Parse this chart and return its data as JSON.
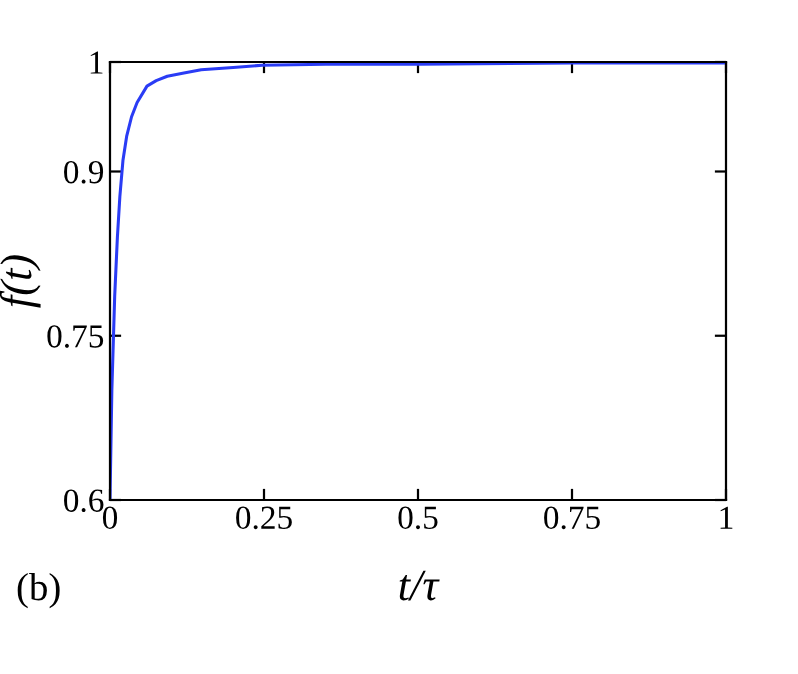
{
  "chart_data": {
    "type": "line",
    "xlabel": "t/τ",
    "ylabel": "f(t)",
    "annotations": [
      "(b)"
    ],
    "series": [
      {
        "color": "#2a3cf5",
        "x": [
          0,
          0.003,
          0.0076,
          0.012,
          0.016,
          0.021,
          0.027,
          0.035,
          0.044,
          0.06,
          0.075,
          0.093,
          0.12,
          0.148,
          0.2,
          0.247,
          0.35,
          0.5,
          0.75,
          1
        ],
        "values": [
          0.6,
          0.7,
          0.786,
          0.84,
          0.877,
          0.91,
          0.932,
          0.95,
          0.963,
          0.978,
          0.983,
          0.987,
          0.99,
          0.993,
          0.995,
          0.997,
          0.998,
          0.998,
          0.999,
          0.999
        ]
      }
    ],
    "xlim": [
      0,
      1
    ],
    "ylim": [
      0.6,
      1
    ],
    "xticks": [
      0,
      0.25,
      0.5,
      0.75,
      1
    ],
    "yticks": [
      0.6,
      0.75,
      0.9,
      1
    ],
    "grid": false,
    "legend": false,
    "marker": "none",
    "line_style": "solid"
  }
}
